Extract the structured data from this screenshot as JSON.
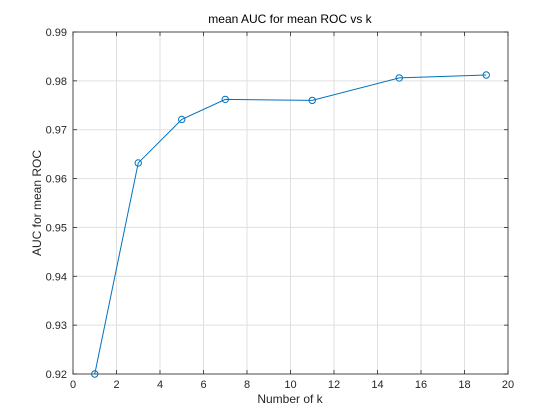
{
  "chart_data": {
    "type": "line",
    "title": "mean AUC for mean ROC vs k",
    "xlabel": "Number of k",
    "ylabel": "AUC for mean ROC",
    "xlim": [
      0,
      20
    ],
    "ylim": [
      0.92,
      0.99
    ],
    "xticks": [
      "0",
      "2",
      "4",
      "6",
      "8",
      "10",
      "12",
      "14",
      "16",
      "18",
      "20"
    ],
    "yticks": [
      "0.92",
      "0.93",
      "0.94",
      "0.95",
      "0.96",
      "0.97",
      "0.98",
      "0.99"
    ],
    "grid": true,
    "marker": "circle",
    "series": [
      {
        "x": [
          1,
          3,
          5,
          7,
          11,
          15,
          19
        ],
        "y": [
          0.92,
          0.9632,
          0.9721,
          0.9762,
          0.976,
          0.9806,
          0.9812
        ],
        "color": "#0072bd"
      }
    ]
  }
}
